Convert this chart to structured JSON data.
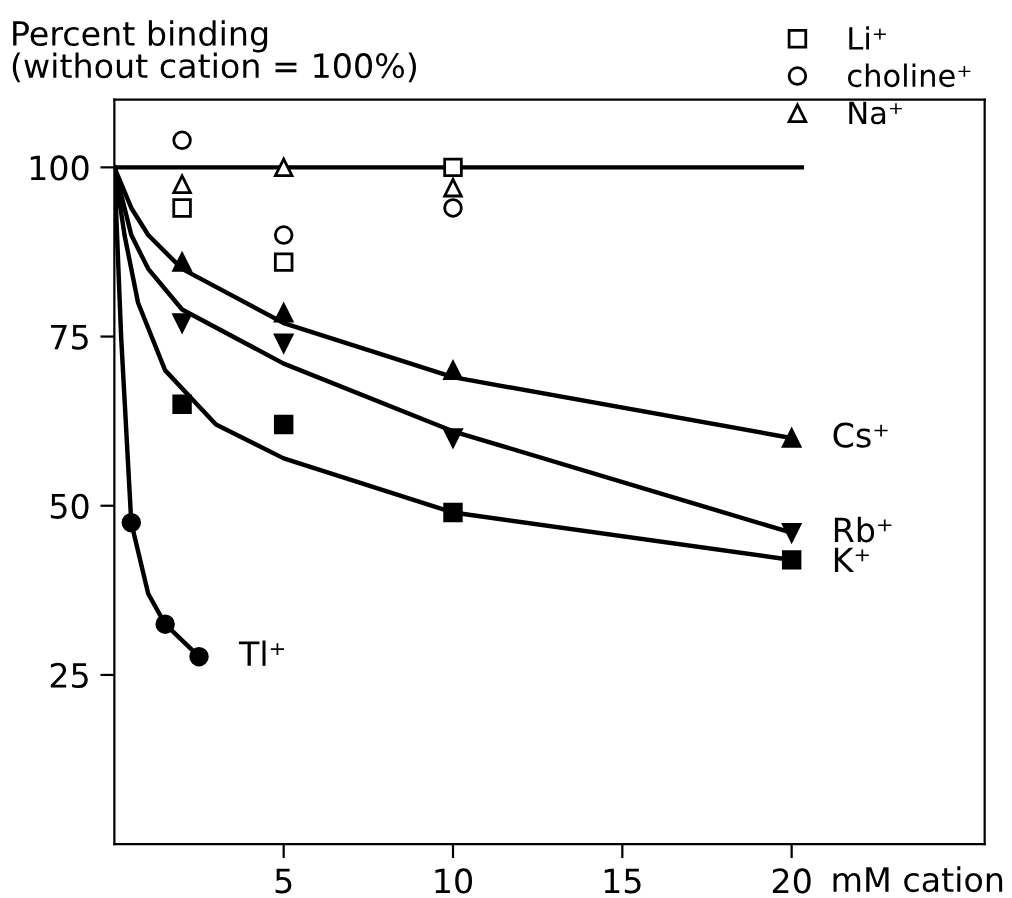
{
  "chart_data": {
    "type": "scatter",
    "ylabel": "Percent binding\n(without cation = 100%)",
    "xlabel": "mM cation",
    "xlim": [
      0,
      25.7
    ],
    "ylim": [
      0,
      110
    ],
    "xticks": [
      5,
      10,
      15,
      20
    ],
    "yticks": [
      25,
      50,
      75,
      100
    ],
    "grid": false,
    "legend": "top right",
    "series": [
      {
        "name": "Li⁺",
        "color": "#ffffff",
        "marker": "square",
        "x": [
          2,
          5,
          10
        ],
        "values": [
          94,
          86,
          100
        ]
      },
      {
        "name": "choline⁺",
        "color": "#ffffff",
        "marker": "circle",
        "x": [
          2,
          5,
          10
        ],
        "values": [
          104,
          90,
          94
        ]
      },
      {
        "name": "Na⁺",
        "color": "#ffffff",
        "marker": "triangle",
        "x": [
          2,
          5,
          10
        ],
        "values": [
          97.5,
          100,
          97
        ]
      },
      {
        "type": "line",
        "color": "#000000",
        "marker": "none",
        "x": [
          0,
          20.3
        ],
        "values": [
          100,
          100
        ]
      },
      {
        "name": "Cs⁺",
        "color": "#000000",
        "marker": "triangle",
        "x": [
          2,
          5,
          10,
          20
        ],
        "values": [
          86,
          78.5,
          70,
          60
        ]
      },
      {
        "type": "line",
        "color": "#000000",
        "marker": "none",
        "x": [
          0,
          0.5,
          1,
          2,
          5,
          10,
          20
        ],
        "values": [
          100,
          94,
          90,
          85,
          77,
          69,
          60
        ]
      },
      {
        "name": "Rb⁺",
        "color": "#000000",
        "marker": "triangle_down",
        "x": [
          2,
          5,
          10,
          20
        ],
        "values": [
          77,
          74,
          60,
          46
        ]
      },
      {
        "type": "line",
        "color": "#000000",
        "marker": "none",
        "x": [
          0,
          0.5,
          1,
          2,
          5,
          10,
          20
        ],
        "values": [
          100,
          90,
          85,
          79,
          71,
          61,
          46
        ]
      },
      {
        "name": "K⁺",
        "color": "#000000",
        "marker": "square",
        "x": [
          2,
          5,
          10,
          20
        ],
        "values": [
          65,
          62,
          49,
          42
        ]
      },
      {
        "type": "line",
        "color": "#000000",
        "marker": "none",
        "x": [
          0,
          0.3,
          0.7,
          1.5,
          3,
          5,
          10,
          20
        ],
        "values": [
          100,
          90,
          80,
          70,
          62,
          57,
          49,
          42
        ]
      },
      {
        "name": "Tl⁺",
        "color": "#000000",
        "marker": "circle",
        "x": [
          0.5,
          1.5,
          2.5
        ],
        "values": [
          47.5,
          32.5,
          27.7
        ]
      },
      {
        "type": "line",
        "color": "#000000",
        "marker": "none",
        "x": [
          0,
          0.2,
          0.5,
          1,
          1.5,
          2.5
        ],
        "values": [
          100,
          75,
          47.5,
          37,
          32.5,
          27.7
        ]
      }
    ]
  }
}
